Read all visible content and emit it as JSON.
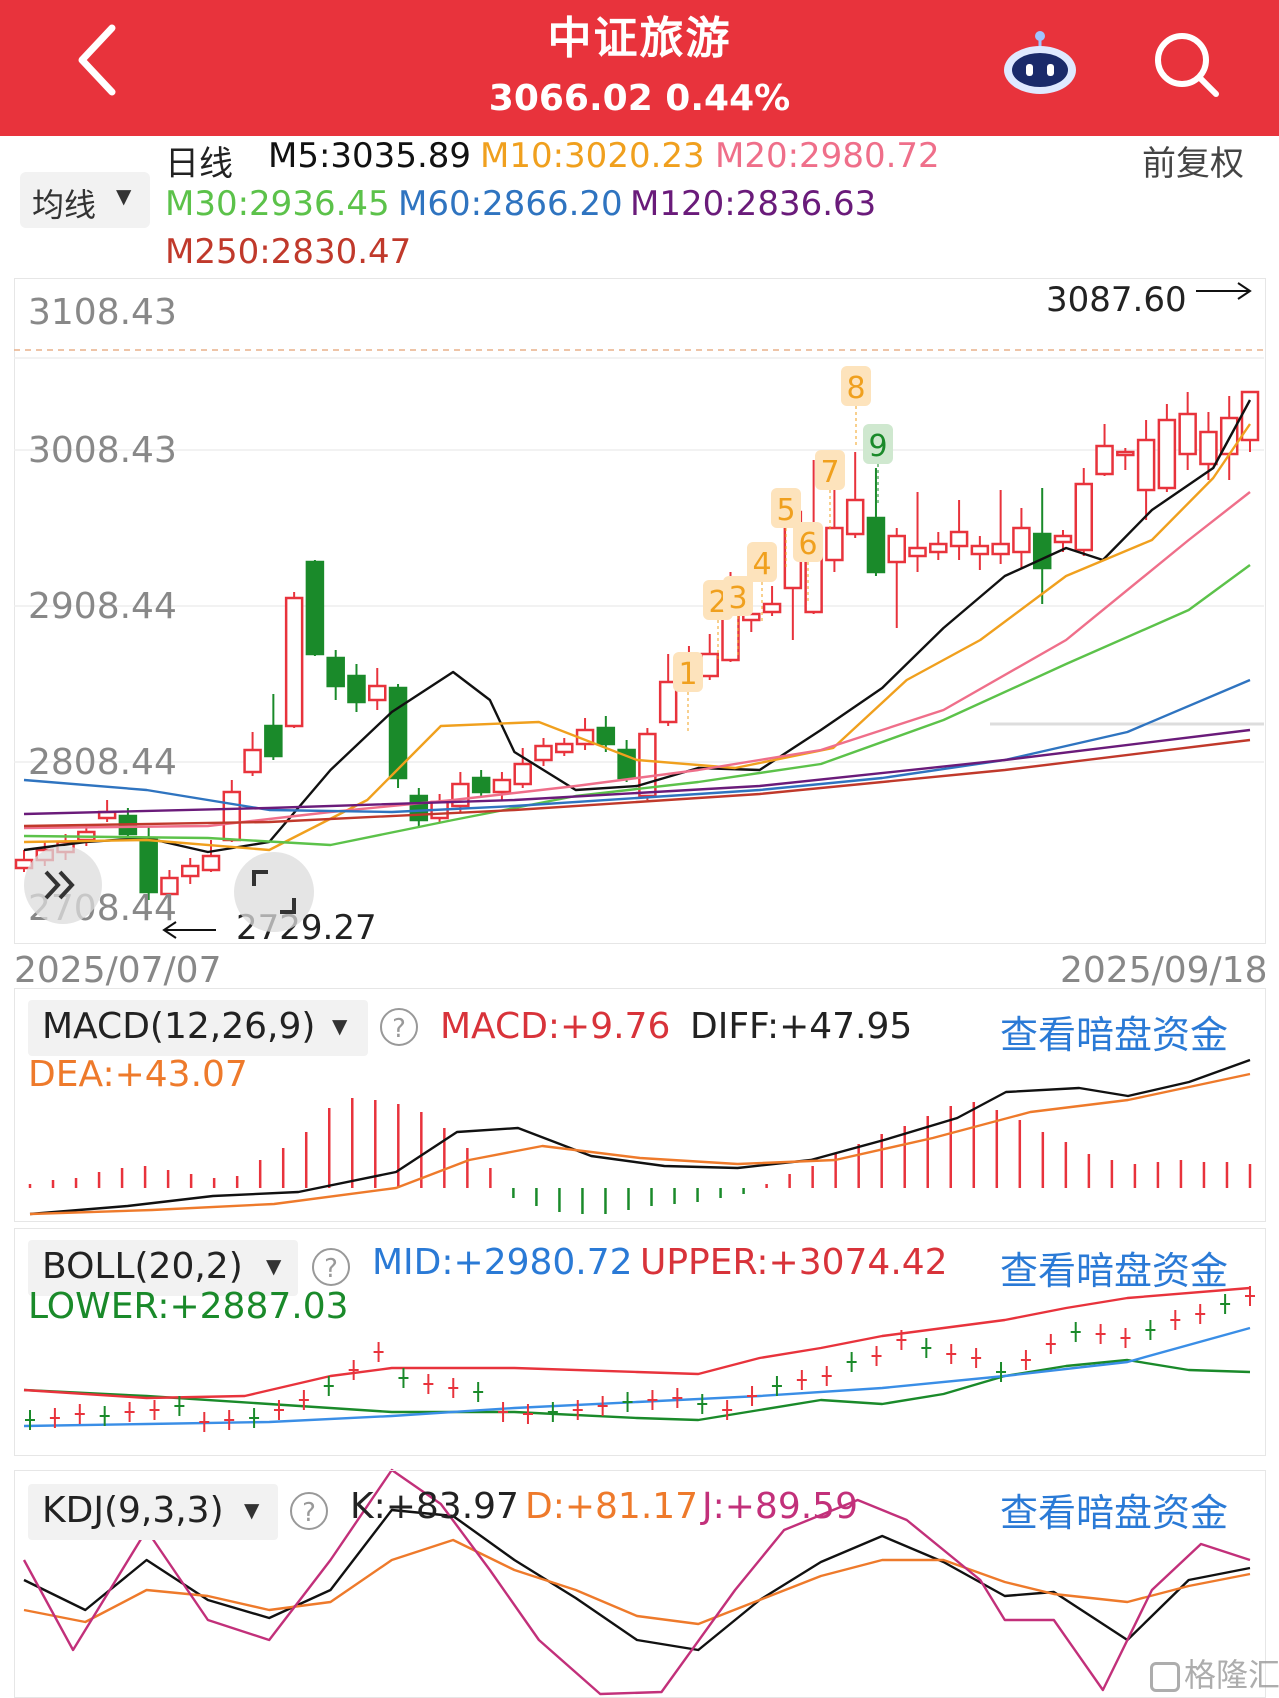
{
  "header": {
    "title": "中证旅游",
    "price": "3066.02",
    "change": "0.44%"
  },
  "toolbar": {
    "period": "日线",
    "ma_selector": "均线",
    "adjust": "前复权",
    "ma_values": [
      {
        "label": "M5:3035.89",
        "color": "#111111"
      },
      {
        "label": "M10:3020.23",
        "color": "#f0a01e"
      },
      {
        "label": "M20:2980.72",
        "color": "#ef6f8a"
      },
      {
        "label": "M30:2936.45",
        "color": "#5cc24a"
      },
      {
        "label": "M60:2866.20",
        "color": "#2f74c0"
      },
      {
        "label": "M120:2836.63",
        "color": "#6a1b7a"
      },
      {
        "label": "M250:2830.47",
        "color": "#c0392b"
      }
    ]
  },
  "main_chart": {
    "y_ticks": [
      "3108.43",
      "3008.43",
      "2908.44",
      "2808.44",
      "2708.44"
    ],
    "high_label": "3087.60",
    "low_label": "2729.27",
    "start_date": "2025/07/07",
    "end_date": "2025/09/18",
    "td_markers": [
      "1",
      "2",
      "3",
      "4",
      "5",
      "6",
      "7",
      "8",
      "9"
    ]
  },
  "macd": {
    "selector": "MACD(12,26,9)",
    "macd": "MACD:+9.76",
    "diff": "DIFF:+47.95",
    "dea": "DEA:+43.07",
    "link": "查看暗盘资金"
  },
  "boll": {
    "selector": "BOLL(20,2)",
    "mid": "MID:+2980.72",
    "upper": "UPPER:+3074.42",
    "lower": "LOWER:+2887.03",
    "link": "查看暗盘资金"
  },
  "kdj": {
    "selector": "KDJ(9,3,3)",
    "k": "K:+83.97",
    "d": "D:+81.17",
    "j": "J:+89.59",
    "link": "查看暗盘资金"
  },
  "watermark": "格隆汇",
  "colors": {
    "header": "#e8333c",
    "up": "#e8333c",
    "down": "#1a8a2a",
    "link": "#2a7ad6"
  },
  "icons": [
    "back-arrow-icon",
    "robot-icon",
    "search-icon",
    "expand-icon",
    "fullscreen-icon",
    "help-icon",
    "dropdown-icon"
  ]
}
